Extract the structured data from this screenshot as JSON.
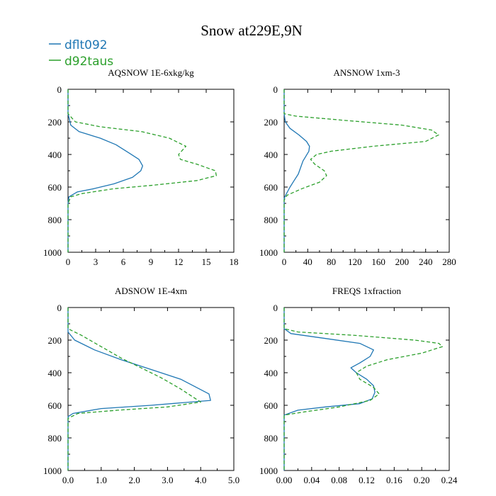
{
  "title": "Snow at229E,9N",
  "colors": {
    "dflt092": "#1f77b4",
    "d92taus": "#2ca02c",
    "axis": "#000000"
  },
  "legend": [
    {
      "name": "dflt092",
      "color": "#1f77b4",
      "style": "solid"
    },
    {
      "name": "d92taus",
      "color": "#2ca02c",
      "style": "dashed"
    }
  ],
  "chart_data": [
    {
      "type": "line",
      "title": "AQSNOW  1E-6xkg/kg",
      "xlim": [
        0,
        18
      ],
      "xticks": [
        0,
        3,
        6,
        9,
        12,
        15,
        18
      ],
      "xticklabels": [
        "0",
        "3",
        "6",
        "9",
        "12",
        "15",
        "18"
      ],
      "ylim": [
        0,
        1000
      ],
      "yticks": [
        0,
        200,
        400,
        600,
        800,
        1000
      ],
      "yticklabels": [
        "0",
        "200",
        "400",
        "600",
        "800",
        "1000"
      ],
      "y_inverted": true,
      "series": [
        {
          "name": "dflt092",
          "style": "solid",
          "x": [
            0,
            0,
            0.3,
            1.2,
            3.5,
            5.2,
            6.6,
            7.7,
            8.1,
            7.9,
            7.0,
            5.0,
            2.8,
            1.0,
            0.1,
            0,
            0
          ],
          "y": [
            0,
            150,
            220,
            260,
            300,
            340,
            390,
            430,
            470,
            500,
            540,
            580,
            610,
            630,
            660,
            700,
            1000
          ]
        },
        {
          "name": "d92taus",
          "style": "dashed",
          "x": [
            0,
            0,
            0.8,
            3.5,
            8.0,
            11.0,
            12.8,
            12.0,
            12.2,
            14.0,
            16.0,
            16.1,
            14.0,
            9.0,
            5.0,
            1.5,
            0.3,
            0,
            0
          ],
          "y": [
            0,
            150,
            200,
            230,
            260,
            300,
            350,
            400,
            430,
            460,
            500,
            530,
            560,
            590,
            610,
            640,
            660,
            700,
            1000
          ]
        }
      ]
    },
    {
      "type": "line",
      "title": "ANSNOW  1xm-3",
      "xlim": [
        0,
        280
      ],
      "xticks": [
        0,
        40,
        80,
        120,
        160,
        200,
        240,
        280
      ],
      "xticklabels": [
        "0",
        "40",
        "80",
        "120",
        "160",
        "200",
        "240",
        "280"
      ],
      "ylim": [
        0,
        1000
      ],
      "yticks": [
        0,
        200,
        400,
        600,
        800,
        1000
      ],
      "yticklabels": [
        "0",
        "200",
        "400",
        "600",
        "800",
        "1000"
      ],
      "y_inverted": true,
      "series": [
        {
          "name": "dflt092",
          "style": "solid",
          "x": [
            0,
            0,
            2,
            10,
            25,
            38,
            43,
            42,
            37,
            32,
            28,
            24,
            17,
            10,
            4,
            0,
            0
          ],
          "y": [
            0,
            150,
            200,
            240,
            280,
            320,
            350,
            380,
            410,
            440,
            480,
            520,
            560,
            600,
            640,
            670,
            1000
          ]
        },
        {
          "name": "d92taus",
          "style": "dashed",
          "x": [
            0,
            0,
            20,
            100,
            200,
            250,
            262,
            240,
            150,
            80,
            55,
            45,
            52,
            68,
            72,
            60,
            30,
            5,
            0,
            0
          ],
          "y": [
            0,
            150,
            165,
            190,
            220,
            250,
            280,
            320,
            350,
            380,
            400,
            430,
            460,
            500,
            530,
            570,
            610,
            650,
            680,
            1000
          ]
        }
      ]
    },
    {
      "type": "line",
      "title": "ADSNOW  1E-4xm",
      "xlim": [
        0,
        5
      ],
      "xticks": [
        0,
        1,
        2,
        3,
        4,
        5
      ],
      "xticklabels": [
        "0.0",
        "1.0",
        "2.0",
        "3.0",
        "4.0",
        "5.0"
      ],
      "ylim": [
        0,
        1000
      ],
      "yticks": [
        0,
        200,
        400,
        600,
        800,
        1000
      ],
      "yticklabels": [
        "0",
        "200",
        "400",
        "600",
        "800",
        "1000"
      ],
      "y_inverted": true,
      "series": [
        {
          "name": "dflt092",
          "style": "solid",
          "x": [
            0,
            0,
            0.2,
            0.8,
            1.6,
            2.5,
            3.4,
            4.25,
            4.3,
            2.5,
            1.0,
            0.15,
            0,
            0
          ],
          "y": [
            0,
            150,
            200,
            260,
            320,
            380,
            440,
            530,
            570,
            600,
            620,
            650,
            670,
            1000
          ]
        },
        {
          "name": "d92taus",
          "style": "dashed",
          "x": [
            0,
            0,
            0.4,
            1.0,
            1.6,
            2.2,
            2.8,
            3.4,
            4.0,
            3.0,
            1.5,
            0.3,
            0,
            0
          ],
          "y": [
            0,
            130,
            170,
            240,
            310,
            370,
            430,
            500,
            580,
            610,
            630,
            650,
            680,
            1000
          ]
        }
      ]
    },
    {
      "type": "line",
      "title": "FREQS  1xfraction",
      "xlim": [
        0,
        0.24
      ],
      "xticks": [
        0,
        0.04,
        0.08,
        0.12,
        0.16,
        0.2,
        0.24
      ],
      "xticklabels": [
        "0.00",
        "0.04",
        "0.08",
        "0.12",
        "0.16",
        "0.20",
        "0.24"
      ],
      "ylim": [
        0,
        1000
      ],
      "yticks": [
        0,
        200,
        400,
        600,
        800,
        1000
      ],
      "yticklabels": [
        "0",
        "200",
        "400",
        "600",
        "800",
        "1000"
      ],
      "y_inverted": true,
      "series": [
        {
          "name": "dflt092",
          "style": "solid",
          "x": [
            0,
            0,
            0.01,
            0.06,
            0.11,
            0.13,
            0.125,
            0.11,
            0.097,
            0.105,
            0.12,
            0.13,
            0.132,
            0.128,
            0.11,
            0.06,
            0.02,
            0,
            0
          ],
          "y": [
            0,
            130,
            160,
            190,
            220,
            260,
            300,
            340,
            370,
            400,
            440,
            480,
            520,
            560,
            590,
            610,
            630,
            660,
            1000
          ]
        },
        {
          "name": "d92taus",
          "style": "dashed",
          "x": [
            0,
            0,
            0.02,
            0.1,
            0.19,
            0.225,
            0.23,
            0.2,
            0.15,
            0.12,
            0.105,
            0.11,
            0.13,
            0.138,
            0.125,
            0.08,
            0.03,
            0,
            0
          ],
          "y": [
            0,
            130,
            150,
            170,
            200,
            220,
            240,
            280,
            320,
            360,
            400,
            440,
            490,
            530,
            570,
            610,
            640,
            660,
            1000
          ]
        }
      ]
    }
  ]
}
